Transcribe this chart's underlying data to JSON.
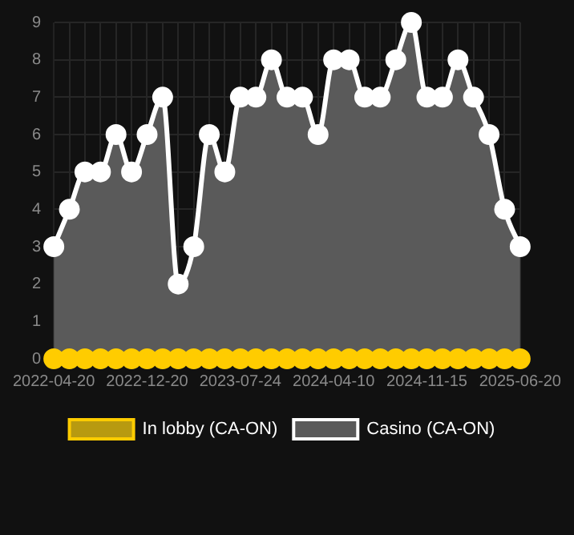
{
  "chart_data": {
    "type": "line",
    "categories": [
      "2022-04-20",
      null,
      null,
      null,
      null,
      null,
      "2022-12-20",
      null,
      null,
      null,
      null,
      null,
      "2023-07-24",
      null,
      null,
      null,
      null,
      null,
      "2024-04-10",
      null,
      null,
      null,
      null,
      null,
      "2024-11-15",
      null,
      null,
      null,
      null,
      null,
      "2025-06-20"
    ],
    "series": [
      {
        "name": "In lobby (CA-ON)",
        "color": "#ffcc00",
        "values": [
          0,
          0,
          0,
          0,
          0,
          0,
          0,
          0,
          0,
          0,
          0,
          0,
          0,
          0,
          0,
          0,
          0,
          0,
          0,
          0,
          0,
          0,
          0,
          0,
          0,
          0,
          0,
          0,
          0,
          0,
          0
        ]
      },
      {
        "name": "Casino (CA-ON)",
        "type": "area",
        "color": "#ffffff",
        "values": [
          3,
          4,
          5,
          5,
          6,
          5,
          6,
          7,
          2,
          3,
          6,
          5,
          7,
          7,
          8,
          7,
          7,
          6,
          8,
          8,
          7,
          7,
          8,
          9,
          7,
          7,
          8,
          7,
          6,
          4,
          3
        ]
      }
    ],
    "ylim": [
      0,
      9
    ],
    "yticks": [
      0,
      1,
      2,
      3,
      4,
      5,
      6,
      7,
      8,
      9
    ],
    "grid": true,
    "legend": "bottom",
    "marker": "circle"
  }
}
